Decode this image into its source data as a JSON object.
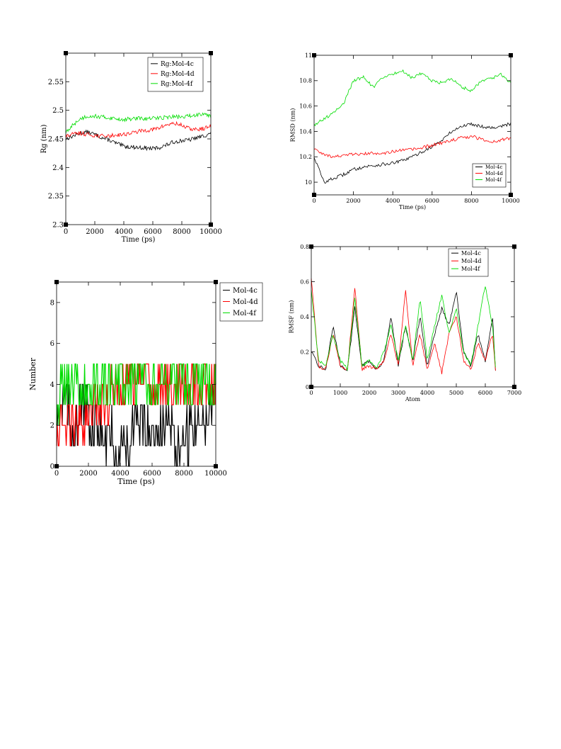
{
  "chart_data": [
    {
      "type": "line",
      "xlabel": "Time (ps)",
      "ylabel": "Rg (nm)",
      "xlim": [
        0,
        10000
      ],
      "ylim": [
        2.3,
        2.6
      ],
      "xticks": [
        "0",
        "2000",
        "4000",
        "6000",
        "8000",
        "10000"
      ],
      "yticks": [
        "2.3",
        "2.35",
        "2.4",
        "2.45",
        "2.5",
        "2.55"
      ],
      "legend_position": "top-right",
      "series": [
        {
          "name": "Rg:Mol-4c",
          "color": "#000000",
          "x": [
            0,
            500,
            1000,
            1500,
            2000,
            2500,
            3000,
            3500,
            4000,
            4500,
            5000,
            5500,
            6000,
            6500,
            7000,
            7500,
            8000,
            8500,
            9000,
            9500,
            10000
          ],
          "y": [
            2.45,
            2.455,
            2.46,
            2.462,
            2.458,
            2.452,
            2.448,
            2.442,
            2.437,
            2.436,
            2.435,
            2.434,
            2.433,
            2.435,
            2.44,
            2.445,
            2.447,
            2.448,
            2.452,
            2.455,
            2.46
          ]
        },
        {
          "name": "Rg:Mol-4d",
          "color": "#ff0000",
          "x": [
            0,
            500,
            1000,
            1500,
            2000,
            2500,
            3000,
            3500,
            4000,
            4500,
            5000,
            5500,
            6000,
            6500,
            7000,
            7500,
            8000,
            8500,
            9000,
            9500,
            10000
          ],
          "y": [
            2.455,
            2.458,
            2.46,
            2.458,
            2.456,
            2.455,
            2.455,
            2.457,
            2.458,
            2.46,
            2.463,
            2.465,
            2.466,
            2.47,
            2.475,
            2.477,
            2.474,
            2.468,
            2.466,
            2.468,
            2.472
          ]
        },
        {
          "name": "Rg:Mol-4f",
          "color": "#00dd00",
          "x": [
            0,
            500,
            1000,
            1500,
            2000,
            2500,
            3000,
            3500,
            4000,
            4500,
            5000,
            5500,
            6000,
            6500,
            7000,
            7500,
            8000,
            8500,
            9000,
            9500,
            10000
          ],
          "y": [
            2.46,
            2.475,
            2.485,
            2.49,
            2.49,
            2.488,
            2.487,
            2.485,
            2.484,
            2.485,
            2.486,
            2.485,
            2.486,
            2.487,
            2.488,
            2.489,
            2.488,
            2.49,
            2.492,
            2.495,
            2.49
          ]
        }
      ]
    },
    {
      "type": "line",
      "xlabel": "Time (ps)",
      "ylabel": "RMSD (nm)",
      "xlim": [
        0,
        10000
      ],
      "ylim": [
        9.9,
        11
      ],
      "xticks": [
        "0",
        "2000",
        "4000",
        "6000",
        "8000",
        "10000"
      ],
      "yticks": [
        "10",
        "10.2",
        "10.4",
        "10.6",
        "10.8",
        "11"
      ],
      "legend_position": "bottom-right",
      "series": [
        {
          "name": "Mol-4c",
          "color": "#000000",
          "x": [
            0,
            500,
            1000,
            1500,
            2000,
            2500,
            3000,
            3500,
            4000,
            4500,
            5000,
            5500,
            6000,
            6500,
            7000,
            7500,
            8000,
            8500,
            9000,
            9500,
            10000
          ],
          "y": [
            10.2,
            10.0,
            10.03,
            10.06,
            10.1,
            10.12,
            10.13,
            10.14,
            10.15,
            10.17,
            10.2,
            10.24,
            10.28,
            10.33,
            10.4,
            10.44,
            10.46,
            10.44,
            10.43,
            10.44,
            10.46
          ]
        },
        {
          "name": "Mol-4d",
          "color": "#ff0000",
          "x": [
            0,
            500,
            1000,
            1500,
            2000,
            2500,
            3000,
            3500,
            4000,
            4500,
            5000,
            5500,
            6000,
            6500,
            7000,
            7500,
            8000,
            8500,
            9000,
            9500,
            10000
          ],
          "y": [
            10.27,
            10.22,
            10.2,
            10.21,
            10.22,
            10.22,
            10.23,
            10.23,
            10.24,
            10.25,
            10.26,
            10.27,
            10.29,
            10.31,
            10.33,
            10.35,
            10.36,
            10.34,
            10.32,
            10.33,
            10.35
          ]
        },
        {
          "name": "Mol-4f",
          "color": "#00dd00",
          "x": [
            0,
            500,
            1000,
            1500,
            2000,
            2500,
            3000,
            3500,
            4000,
            4500,
            5000,
            5500,
            6000,
            6500,
            7000,
            7500,
            8000,
            8500,
            9000,
            9500,
            10000
          ],
          "y": [
            10.45,
            10.5,
            10.55,
            10.62,
            10.8,
            10.83,
            10.75,
            10.82,
            10.85,
            10.88,
            10.82,
            10.86,
            10.8,
            10.78,
            10.82,
            10.75,
            10.72,
            10.8,
            10.82,
            10.85,
            10.78
          ]
        }
      ]
    },
    {
      "type": "line",
      "xlabel": "Time (ps)",
      "ylabel": "Number",
      "xlim": [
        0,
        10000
      ],
      "ylim": [
        0,
        9
      ],
      "xticks": [
        "0",
        "2000",
        "4000",
        "6000",
        "8000",
        "10000"
      ],
      "yticks": [
        "0",
        "2",
        "4",
        "6",
        "8"
      ],
      "legend_position": "top-right",
      "series": [
        {
          "name": "Mol-4c",
          "color": "#000000",
          "x": [
            0,
            500,
            1000,
            1500,
            2000,
            2500,
            3000,
            3500,
            4000,
            4500,
            5000,
            5500,
            6000,
            6500,
            7000,
            7500,
            8000,
            8500,
            9000,
            9500,
            10000
          ],
          "y": [
            3,
            3,
            2,
            3,
            2,
            2,
            2,
            1,
            1,
            1,
            2,
            2,
            2,
            2,
            2,
            1,
            1,
            2,
            2,
            3,
            3
          ]
        },
        {
          "name": "Mol-4d",
          "color": "#ff0000",
          "x": [
            0,
            500,
            1000,
            1500,
            2000,
            2500,
            3000,
            3500,
            4000,
            4500,
            5000,
            5500,
            6000,
            6500,
            7000,
            7500,
            8000,
            8500,
            9000,
            9500,
            10000
          ],
          "y": [
            2,
            2,
            2,
            2,
            3,
            3,
            3,
            4,
            4,
            4,
            4,
            4,
            4,
            4,
            4,
            4,
            4,
            4,
            4,
            4,
            4
          ]
        },
        {
          "name": "Mol-4f",
          "color": "#00dd00",
          "x": [
            0,
            500,
            1000,
            1500,
            2000,
            2500,
            3000,
            3500,
            4000,
            4500,
            5000,
            5500,
            6000,
            6500,
            7000,
            7500,
            8000,
            8500,
            9000,
            9500,
            10000
          ],
          "y": [
            3,
            4,
            4,
            4,
            4,
            4,
            4,
            4,
            4,
            4,
            4,
            4,
            4,
            4,
            4,
            4,
            4,
            4,
            4,
            4,
            4
          ]
        }
      ]
    },
    {
      "type": "line",
      "xlabel": "Atom",
      "ylabel": "RMSF (nm)",
      "xlim": [
        0,
        7000
      ],
      "ylim": [
        0,
        0.8
      ],
      "xticks": [
        "0",
        "1000",
        "2000",
        "3000",
        "4000",
        "5000",
        "6000",
        "7000"
      ],
      "yticks": [
        "0",
        "0.2",
        "0.4",
        "0.6",
        "0.8"
      ],
      "legend_position": "top-right",
      "series": [
        {
          "name": "Mol-4c",
          "color": "#000000",
          "x": [
            0,
            250,
            500,
            750,
            1000,
            1250,
            1500,
            1750,
            2000,
            2250,
            2500,
            2750,
            3000,
            3250,
            3500,
            3750,
            4000,
            4250,
            4500,
            4750,
            5000,
            5250,
            5500,
            5750,
            6000,
            6250,
            6350
          ],
          "y": [
            0.2,
            0.12,
            0.1,
            0.35,
            0.12,
            0.1,
            0.45,
            0.12,
            0.15,
            0.1,
            0.15,
            0.4,
            0.12,
            0.35,
            0.15,
            0.4,
            0.12,
            0.3,
            0.45,
            0.35,
            0.55,
            0.2,
            0.12,
            0.3,
            0.15,
            0.4,
            0.1
          ]
        },
        {
          "name": "Mol-4d",
          "color": "#ff0000",
          "x": [
            0,
            250,
            500,
            750,
            1000,
            1250,
            1500,
            1750,
            2000,
            2250,
            2500,
            2750,
            3000,
            3250,
            3500,
            3750,
            4000,
            4250,
            4500,
            4750,
            5000,
            5250,
            5500,
            5750,
            6000,
            6250,
            6350
          ],
          "y": [
            0.62,
            0.12,
            0.1,
            0.3,
            0.12,
            0.1,
            0.57,
            0.1,
            0.12,
            0.1,
            0.15,
            0.3,
            0.12,
            0.55,
            0.12,
            0.3,
            0.1,
            0.25,
            0.08,
            0.3,
            0.4,
            0.15,
            0.1,
            0.25,
            0.15,
            0.3,
            0.1
          ]
        },
        {
          "name": "Mol-4f",
          "color": "#00dd00",
          "x": [
            0,
            250,
            500,
            750,
            1000,
            1250,
            1500,
            1750,
            2000,
            2250,
            2500,
            2750,
            3000,
            3250,
            3500,
            3750,
            4000,
            4250,
            4500,
            4750,
            5000,
            5250,
            5500,
            5750,
            6000,
            6250,
            6350
          ],
          "y": [
            0.55,
            0.15,
            0.12,
            0.3,
            0.15,
            0.1,
            0.5,
            0.12,
            0.15,
            0.1,
            0.2,
            0.35,
            0.15,
            0.35,
            0.15,
            0.5,
            0.15,
            0.35,
            0.52,
            0.3,
            0.45,
            0.2,
            0.12,
            0.35,
            0.58,
            0.35,
            0.12
          ]
        }
      ]
    }
  ]
}
